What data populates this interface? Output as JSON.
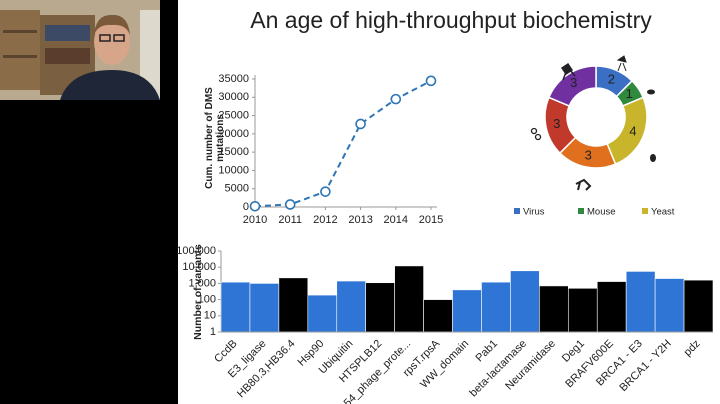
{
  "title": "An age of high-throughput biochemistry",
  "chart_data": [
    {
      "type": "line",
      "y_label": "Cum. number of DMS mutations",
      "x": [
        2010,
        2011,
        2012,
        2013,
        2014,
        2015
      ],
      "values": [
        200,
        700,
        4200,
        22700,
        29500,
        34500
      ],
      "color": "#2e75b6",
      "xlim": [
        2010,
        2015
      ],
      "xticks": [
        2010,
        2011,
        2012,
        2013,
        2014,
        2015
      ],
      "ylim": [
        0,
        35000
      ],
      "yticks": [
        0,
        5000,
        10000,
        15000,
        20000,
        25000,
        30000,
        35000
      ],
      "grid": false
    },
    {
      "type": "donut",
      "categories": [
        "Virus",
        "Mouse",
        "Yeast",
        null,
        null,
        null
      ],
      "values": [
        2,
        1,
        4,
        3,
        3,
        3
      ],
      "colors": [
        "#3b6fc4",
        "#2f8a3e",
        "#c9b52c",
        "#e0701e",
        "#c0392b",
        "#7030a0"
      ],
      "legend": "bottom"
    },
    {
      "type": "bar",
      "y_label": "Number of variants",
      "log_scale": true,
      "categories": [
        "CcdB",
        "E3_ligase",
        "HB80.3,HB36.4",
        "Hsp90",
        "Ubiquitin",
        "HTSPLB12",
        "54_phage_prote...",
        "rpsT.rpsA",
        "WW_domain",
        "Pab1",
        "beta-lactamase",
        "Neuramidase",
        "Deg1",
        "BRAFV600E",
        "BRCA1 - E3",
        "BRCA1 - Y2H",
        "pdz"
      ],
      "values": [
        1200,
        1000,
        2200,
        190,
        1400,
        1100,
        12000,
        100,
        400,
        1200,
        6000,
        700,
        500,
        1300,
        5500,
        2000,
        1600
      ],
      "colors": [
        "#2e75d6",
        "#2e75d6",
        "#000000",
        "#2e75d6",
        "#2e75d6",
        "#000000",
        "#000000",
        "#000000",
        "#2e75d6",
        "#2e75d6",
        "#2e75d6",
        "#000000",
        "#000000",
        "#000000",
        "#2e75d6",
        "#2e75d6",
        "#000000"
      ],
      "ylim": [
        1,
        100000
      ],
      "yticks": [
        1,
        10,
        100,
        {
          "value": 1000,
          "label": "1,000"
        },
        {
          "value": 10000,
          "label": "10,000"
        },
        {
          "value": 100000,
          "label": "100,000"
        }
      ]
    }
  ]
}
